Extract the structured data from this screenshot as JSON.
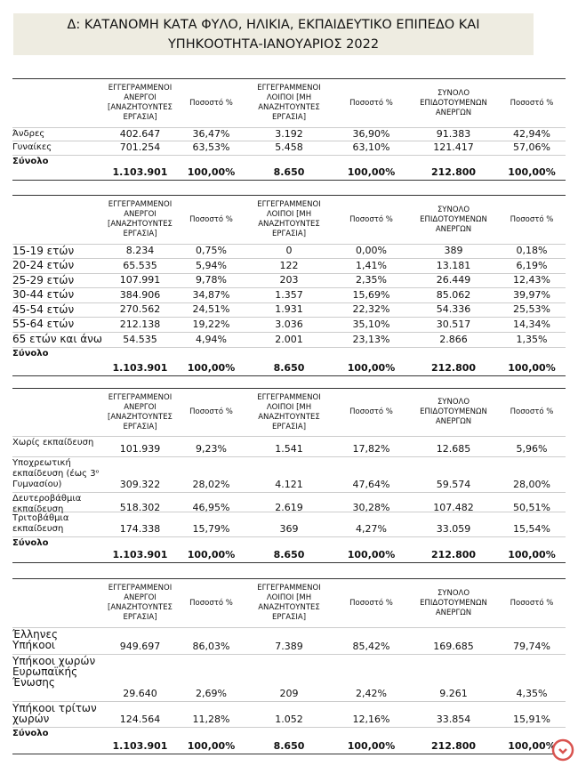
{
  "title": {
    "lines": [
      "Δ: ΚΑΤΑΝΟΜΗ ΚΑΤΑ ΦΥΛΟ, ΗΛΙΚΙΑ, ΕΚΠΑΙΔΕΥΤΙΚΟ ΕΠΙΠΕΔΟ ΚΑΙ",
      "ΥΠΗΚΟΟΤΗΤΑ-ΙΑΝΟΥΑΡΙΟΣ 2022"
    ]
  },
  "tables": [
    {
      "headers": [
        "ΕΓΓΕΓΡΑΜΜΕΝΟΙ ΑΝΕΡΓΟΙ [ΑΝΑΖΗΤΟΥΝΤΕΣ ΕΡΓΑΣΙΑ]",
        "Ποσοστό %",
        "ΕΓΓΕΓΡΑΜΜΕΝΟΙ ΛΟΙΠΟΙ [ΜΗ ΑΝΑΖΗΤΟΥΝΤΕΣ ΕΡΓΑΣΙΑ]",
        "Ποσοστό %",
        "ΣΥΝΟΛΟ ΕΠΙΔΟΤΟΥΜΕΝΩΝ ΑΝΕΡΓΩΝ",
        "Ποσοστό %"
      ],
      "rows": [
        {
          "label": "Άνδρες",
          "values": [
            "402.647",
            "36,47%",
            "3.192",
            "36,90%",
            "91.383",
            "42,94%"
          ]
        },
        {
          "label": "Γυναίκες",
          "values": [
            "701.254",
            "63,53%",
            "5.458",
            "63,10%",
            "121.417",
            "57,06%"
          ]
        }
      ],
      "total": {
        "label": "Σύνολο",
        "values": [
          "1.103.901",
          "100,00%",
          "8.650",
          "100,00%",
          "212.800",
          "100,00%"
        ]
      }
    },
    {
      "headers": [
        "ΕΓΓΕΓΡΑΜΜΕΝΟΙ ΑΝΕΡΓΟΙ [ΑΝΑΖΗΤΟΥΝΤΕΣ ΕΡΓΑΣΙΑ]",
        "Ποσοστό %",
        "ΕΓΓΕΓΡΑΜΜΕΝΟΙ ΛΟΙΠΟΙ [ΜΗ ΑΝΑΖΗΤΟΥΝΤΕΣ ΕΡΓΑΣΙΑ]",
        "Ποσοστό %",
        "ΣΥΝΟΛΟ ΕΠΙΔΟΤΟΥΜΕΝΩΝ ΑΝΕΡΓΩΝ",
        "Ποσοστό %"
      ],
      "rows": [
        {
          "label": "15-19 ετών",
          "values": [
            "8.234",
            "0,75%",
            "0",
            "0,00%",
            "389",
            "0,18%"
          ]
        },
        {
          "label": "20-24 ετών",
          "values": [
            "65.535",
            "5,94%",
            "122",
            "1,41%",
            "13.181",
            "6,19%"
          ]
        },
        {
          "label": "25-29 ετών",
          "values": [
            "107.991",
            "9,78%",
            "203",
            "2,35%",
            "26.449",
            "12,43%"
          ]
        },
        {
          "label": "30-44 ετών",
          "values": [
            "384.906",
            "34,87%",
            "1.357",
            "15,69%",
            "85.062",
            "39,97%"
          ]
        },
        {
          "label": "45-54 ετών",
          "values": [
            "270.562",
            "24,51%",
            "1.931",
            "22,32%",
            "54.336",
            "25,53%"
          ]
        },
        {
          "label": "55-64 ετών",
          "values": [
            "212.138",
            "19,22%",
            "3.036",
            "35,10%",
            "30.517",
            "14,34%"
          ]
        },
        {
          "label": "65 ετών και άνω",
          "values": [
            "54.535",
            "4,94%",
            "2.001",
            "23,13%",
            "2.866",
            "1,35%"
          ]
        }
      ],
      "total": {
        "label": "Σύνολο",
        "values": [
          "1.103.901",
          "100,00%",
          "8.650",
          "100,00%",
          "212.800",
          "100,00%"
        ]
      }
    },
    {
      "headers": [
        "ΕΓΓΕΓΡΑΜΜΕΝΟΙ ΑΝΕΡΓΟΙ [ΑΝΑΖΗΤΟΥΝΤΕΣ ΕΡΓΑΣΙΑ]",
        "Ποσοστό %",
        "ΕΓΓΕΓΡΑΜΜΕΝΟΙ ΛΟΙΠΟΙ [ΜΗ ΑΝΑΖΗΤΟΥΝΤΕΣ ΕΡΓΑΣΙΑ]",
        "Ποσοστό %",
        "ΣΥΝΟΛΟ ΕΠΙΔΟΤΟΥΜΕΝΩΝ ΑΝΕΡΓΩΝ",
        "Ποσοστό %"
      ],
      "rows": [
        {
          "label": "Χωρίς εκπαίδευση",
          "values": [
            "101.939",
            "9,23%",
            "1.541",
            "17,82%",
            "12.685",
            "5,96%"
          ]
        },
        {
          "label": "Υποχρεωτική εκπαίδευση (έως 3ᵒ Γυμνασίου)",
          "values": [
            "309.322",
            "28,02%",
            "4.121",
            "47,64%",
            "59.574",
            "28,00%"
          ]
        },
        {
          "label": "Δευτεροβάθμια εκπαίδευση",
          "values": [
            "518.302",
            "46,95%",
            "2.619",
            "30,28%",
            "107.482",
            "50,51%"
          ]
        },
        {
          "label": "Τριτοβάθμια εκπαίδευση",
          "values": [
            "174.338",
            "15,79%",
            "369",
            "4,27%",
            "33.059",
            "15,54%"
          ]
        }
      ],
      "total": {
        "label": "Σύνολο",
        "values": [
          "1.103.901",
          "100,00%",
          "8.650",
          "100,00%",
          "212.800",
          "100,00%"
        ]
      }
    },
    {
      "headers": [
        "ΕΓΓΕΓΡΑΜΜΕΝΟΙ ΑΝΕΡΓΟΙ [ΑΝΑΖΗΤΟΥΝΤΕΣ ΕΡΓΑΣΙΑ]",
        "Ποσοστό %",
        "ΕΓΓΕΓΡΑΜΜΕΝΟΙ ΛΟΙΠΟΙ [ΜΗ ΑΝΑΖΗΤΟΥΝΤΕΣ ΕΡΓΑΣΙΑ]",
        "Ποσοστό %",
        "ΣΥΝΟΛΟ ΕΠΙΔΟΤΟΥΜΕΝΩΝ ΑΝΕΡΓΩΝ",
        "Ποσοστό %"
      ],
      "rows": [
        {
          "label": "Έλληνες Υπήκοοι",
          "values": [
            "949.697",
            "86,03%",
            "7.389",
            "85,42%",
            "169.685",
            "79,74%"
          ]
        },
        {
          "label": "Υπήκοοι χωρών Ευρωπαϊκής Ένωσης",
          "values": [
            "29.640",
            "2,69%",
            "209",
            "2,42%",
            "9.261",
            "4,35%"
          ]
        },
        {
          "label": "Υπήκοοι τρίτων χωρών",
          "values": [
            "124.564",
            "11,28%",
            "1.052",
            "12,16%",
            "33.854",
            "15,91%"
          ]
        }
      ],
      "total": {
        "label": "Σύνολο",
        "values": [
          "1.103.901",
          "100,00%",
          "8.650",
          "100,00%",
          "212.800",
          "100,00%"
        ]
      }
    }
  ]
}
